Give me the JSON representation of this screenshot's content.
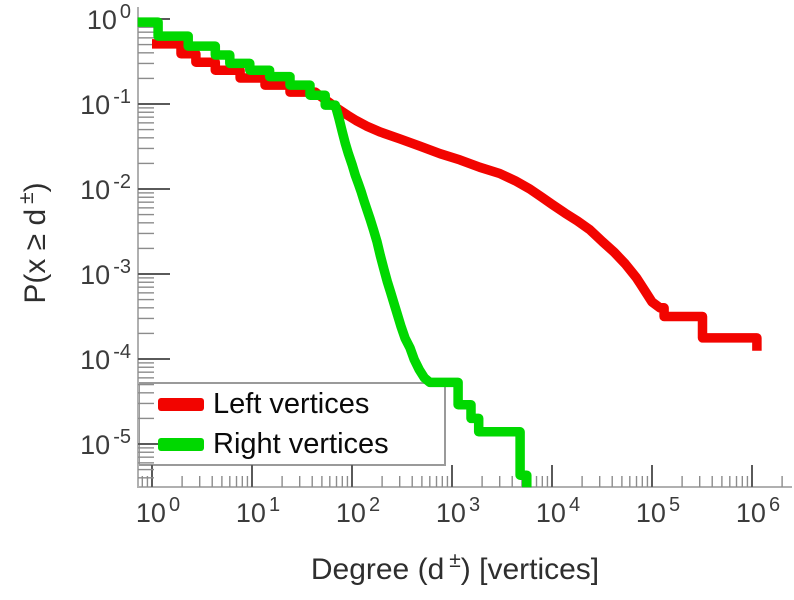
{
  "chart_data": {
    "type": "line",
    "title": "",
    "xlabel": "Degree (d^±) [vertices]",
    "ylabel": "P(x ≥ d^±)",
    "x_scale": "log",
    "y_scale": "log",
    "x_range": [
      0.72,
      2400000
    ],
    "y_range": [
      3.1e-06,
      1.38
    ],
    "grid": false,
    "labels": {
      "xlabel_pre": "Degree (d",
      "xlabel_sup": "±",
      "xlabel_post": ") [vertices]",
      "ylabel_pre": "P(x ≥ d",
      "ylabel_sup": "±",
      "ylabel_post": ")"
    },
    "axes": {
      "tick_base": "10",
      "x_tick_exponents": [
        0,
        1,
        2,
        3,
        4,
        5,
        6
      ],
      "y_tick_exponents": [
        0,
        -1,
        -2,
        -3,
        -4,
        -5
      ],
      "minor_ticks": true
    },
    "legend": {
      "position": "bottom-left",
      "items": [
        {
          "label": "Left vertices",
          "color": "#f20400"
        },
        {
          "label": "Right vertices",
          "color": "#00d800"
        }
      ]
    },
    "series": [
      {
        "name": "Left vertices",
        "color": "#f20400",
        "points": [
          [
            1,
            0.51
          ],
          [
            1.95,
            0.51
          ],
          [
            1.95,
            0.39
          ],
          [
            2.75,
            0.39
          ],
          [
            2.75,
            0.31
          ],
          [
            4.3,
            0.31
          ],
          [
            4.3,
            0.25
          ],
          [
            7.6,
            0.25
          ],
          [
            7.6,
            0.202
          ],
          [
            13.5,
            0.202
          ],
          [
            13.5,
            0.167
          ],
          [
            24,
            0.167
          ],
          [
            24,
            0.138
          ],
          [
            43,
            0.138
          ],
          [
            50,
            0.12
          ],
          [
            60,
            0.103
          ],
          [
            72,
            0.088
          ],
          [
            90,
            0.074
          ],
          [
            110,
            0.064
          ],
          [
            140,
            0.055
          ],
          [
            190,
            0.047
          ],
          [
            300,
            0.039
          ],
          [
            475,
            0.032
          ],
          [
            760,
            0.026
          ],
          [
            1200,
            0.022
          ],
          [
            1900,
            0.018
          ],
          [
            3000,
            0.0152
          ],
          [
            4300,
            0.0125
          ],
          [
            6000,
            0.01
          ],
          [
            7900,
            0.008
          ],
          [
            10000,
            0.0066
          ],
          [
            13500,
            0.0052
          ],
          [
            18000,
            0.0042
          ],
          [
            24000,
            0.0033
          ],
          [
            32000,
            0.0024
          ],
          [
            42000,
            0.0018
          ],
          [
            54000,
            0.00132
          ],
          [
            70000,
            0.0009
          ],
          [
            86000,
            0.00062
          ],
          [
            100000,
            0.00047
          ],
          [
            120000,
            0.0004
          ],
          [
            132000,
            0.0004
          ],
          [
            132000,
            0.000316
          ],
          [
            320000,
            0.000316
          ],
          [
            320000,
            0.000177
          ],
          [
            1120000,
            0.000177
          ],
          [
            1120000,
            0.000125
          ]
        ]
      },
      {
        "name": "Right vertices",
        "color": "#00d800",
        "points": [
          [
            0.72,
            0.92
          ],
          [
            1.15,
            0.92
          ],
          [
            1.15,
            0.63
          ],
          [
            2.3,
            0.63
          ],
          [
            2.3,
            0.48
          ],
          [
            4.3,
            0.48
          ],
          [
            4.3,
            0.377
          ],
          [
            6,
            0.377
          ],
          [
            6,
            0.3
          ],
          [
            9.5,
            0.3
          ],
          [
            9.5,
            0.25
          ],
          [
            15,
            0.25
          ],
          [
            15,
            0.21
          ],
          [
            24,
            0.21
          ],
          [
            24,
            0.167
          ],
          [
            38,
            0.167
          ],
          [
            38,
            0.127
          ],
          [
            54,
            0.127
          ],
          [
            54,
            0.097
          ],
          [
            68,
            0.097
          ],
          [
            74,
            0.068
          ],
          [
            80,
            0.047
          ],
          [
            86,
            0.034
          ],
          [
            92,
            0.026
          ],
          [
            100,
            0.0195
          ],
          [
            108,
            0.0145
          ],
          [
            116,
            0.0115
          ],
          [
            124,
            0.0092
          ],
          [
            132,
            0.0072
          ],
          [
            142,
            0.0056
          ],
          [
            152,
            0.0044
          ],
          [
            164,
            0.0033
          ],
          [
            178,
            0.0024
          ],
          [
            192,
            0.00165
          ],
          [
            208,
            0.00115
          ],
          [
            225,
            0.00082
          ],
          [
            243,
            0.00061
          ],
          [
            262,
            0.00046
          ],
          [
            285,
            0.00033
          ],
          [
            310,
            0.00024
          ],
          [
            340,
            0.000175
          ],
          [
            380,
            0.000135
          ],
          [
            420,
            9.8e-05
          ],
          [
            470,
            7.5e-05
          ],
          [
            530,
            6e-05
          ],
          [
            600,
            5.3e-05
          ],
          [
            1150,
            5.3e-05
          ],
          [
            1150,
            2.9e-05
          ],
          [
            1550,
            2.9e-05
          ],
          [
            1550,
            2e-05
          ],
          [
            1850,
            2e-05
          ],
          [
            1850,
            1.39e-05
          ],
          [
            4800,
            1.39e-05
          ],
          [
            4800,
            4.3e-06
          ],
          [
            5600,
            4.3e-06
          ],
          [
            5600,
            3.1e-06
          ]
        ]
      }
    ]
  }
}
